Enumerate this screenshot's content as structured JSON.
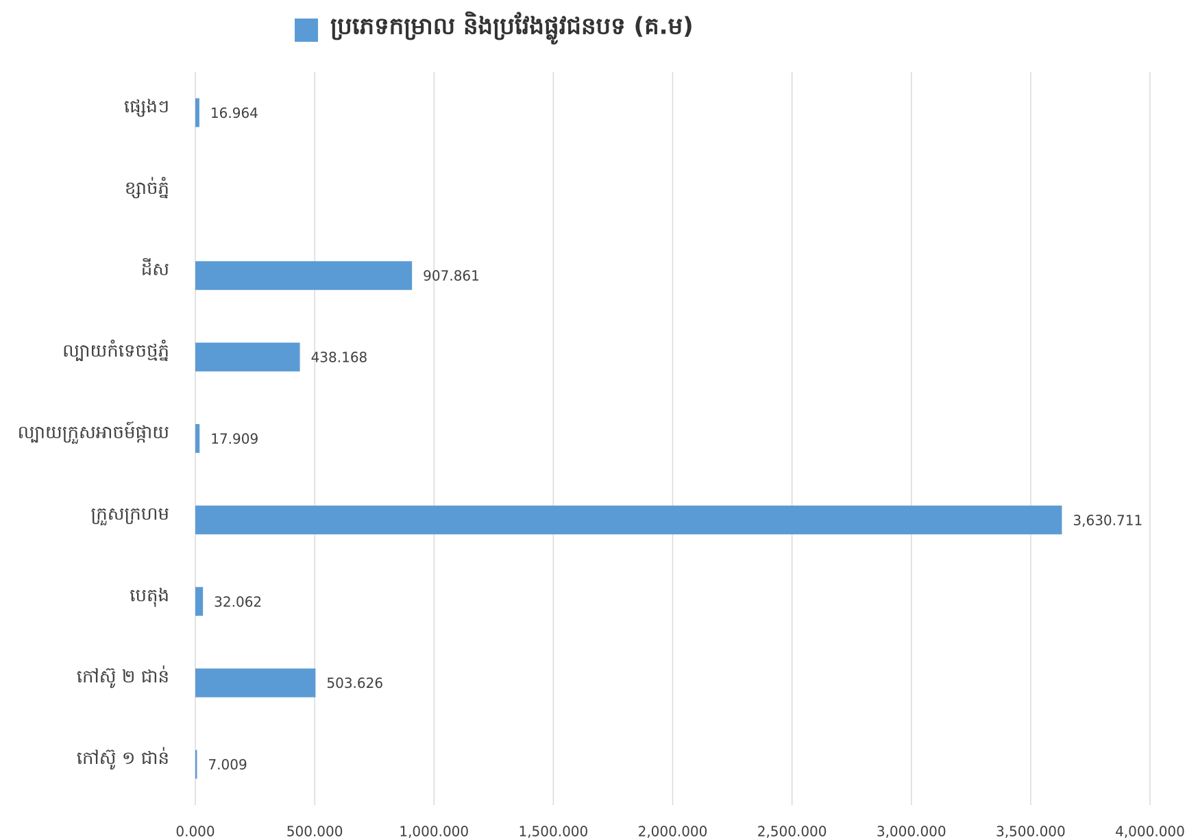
{
  "chart_data": {
    "type": "bar",
    "orientation": "horizontal",
    "categories": [
      "ផ្សេងៗ",
      "ខ្សាច់ភ្នំ",
      "ដីស",
      "ល្បាយកំទេចថ្មភ្នំ",
      "ល្បាយក្រួសអាចម៍ផ្កាយ",
      "ក្រួសក្រហម",
      "បេតុង",
      "កៅស៊ូ ២ ជាន់",
      "កៅស៊ូ ១ ជាន់"
    ],
    "series": [
      {
        "name": "ប្រភេទកម្រាល និងប្រវែងផ្លូវជនបទ (គ.ម)",
        "color": "#5b9bd5",
        "values": [
          16.964,
          null,
          907.861,
          438.168,
          17.909,
          3630.711,
          32.062,
          503.626,
          7.009
        ],
        "value_labels": [
          "16.964",
          null,
          "907.861",
          "438.168",
          "17.909",
          "3,630.711",
          "32.062",
          "503.626",
          "7.009"
        ]
      }
    ],
    "xlim": [
      0,
      4000
    ],
    "xticks": [
      {
        "value": 0,
        "label": "0.000"
      },
      {
        "value": 500,
        "label": "500.000"
      },
      {
        "value": 1000,
        "label": "1,000.000"
      },
      {
        "value": 1500,
        "label": "1,500.000"
      },
      {
        "value": 2000,
        "label": "2,000.000"
      },
      {
        "value": 2500,
        "label": "2,500.000"
      },
      {
        "value": 3000,
        "label": "3,000.000"
      },
      {
        "value": 3500,
        "label": "3,500.000"
      },
      {
        "value": 4000,
        "label": "4,000.000"
      }
    ],
    "grid": true,
    "legend": "top"
  }
}
